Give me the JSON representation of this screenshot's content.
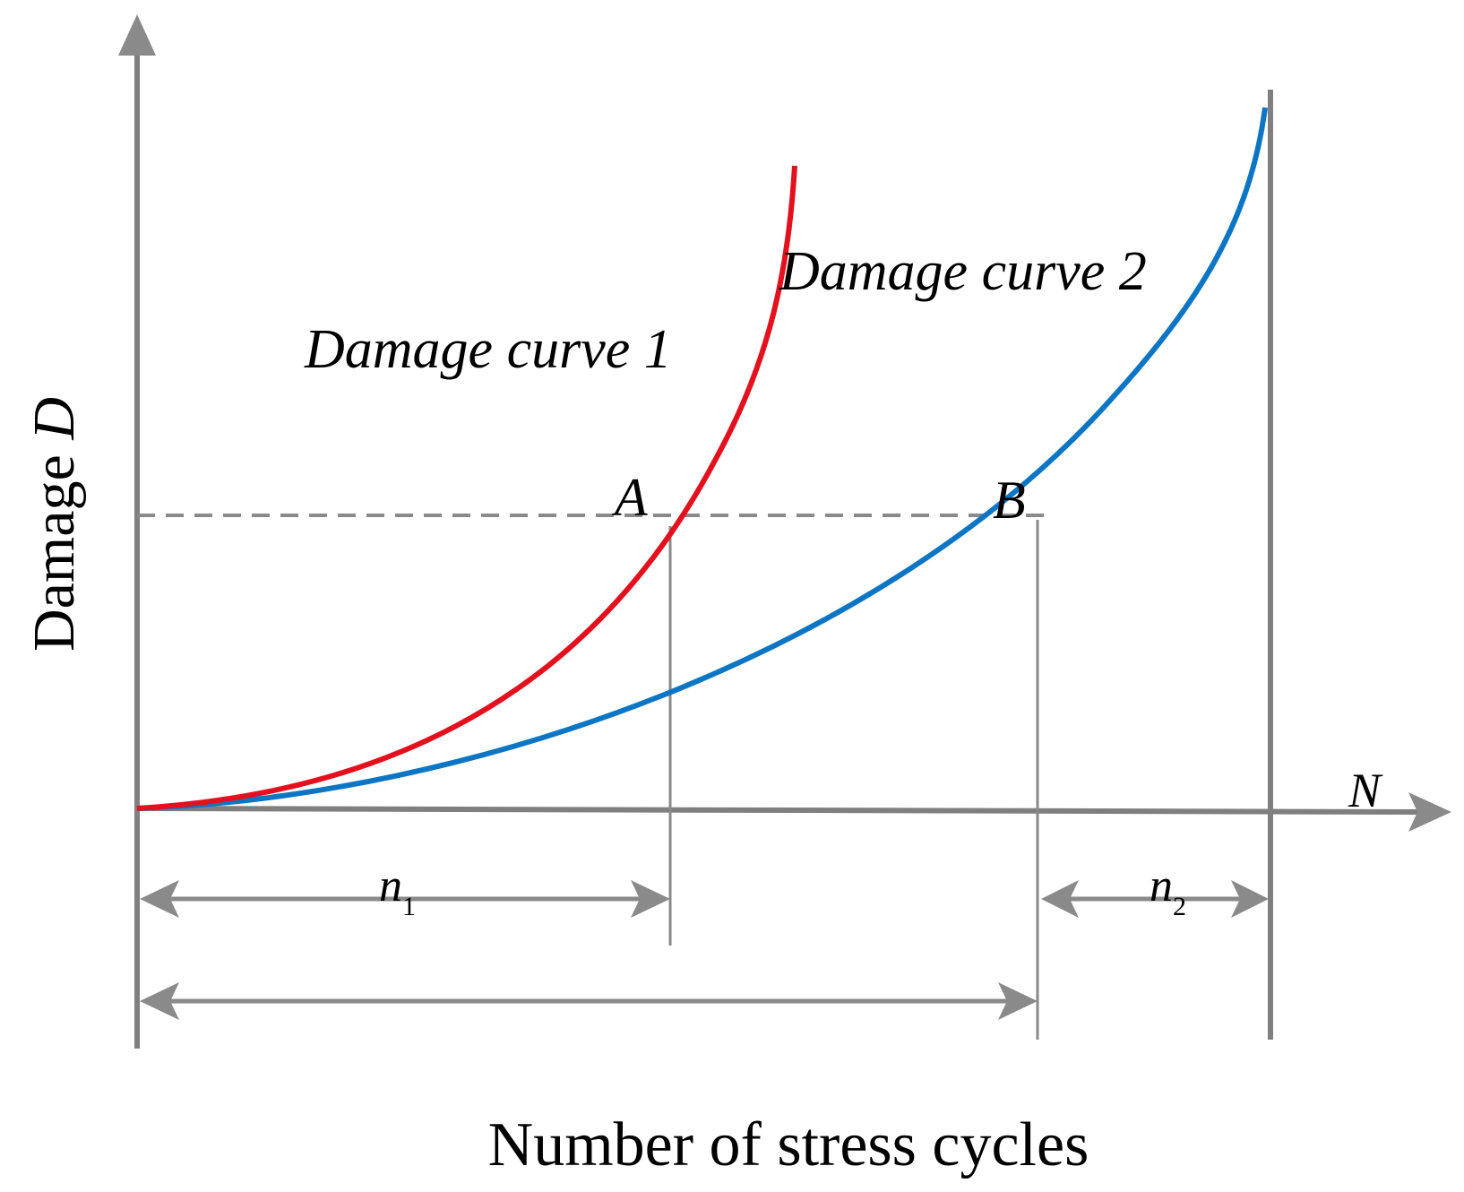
{
  "diagram": {
    "y_axis_label_text": "Damage ",
    "y_axis_label_symbol": "D",
    "x_axis_label": "Number of stress cycles",
    "x_axis_end_label": "N",
    "curve1_label": "Damage curve 1",
    "curve2_label": "Damage curve 2",
    "point_a": "A",
    "point_b": "B",
    "n1_symbol": "n",
    "n1_subscript": "1",
    "n2_symbol": "n",
    "n2_subscript": "2",
    "colors": {
      "curve1": "#e4101d",
      "curve2": "#0d76c4",
      "axes": "#7f7f7f"
    }
  }
}
